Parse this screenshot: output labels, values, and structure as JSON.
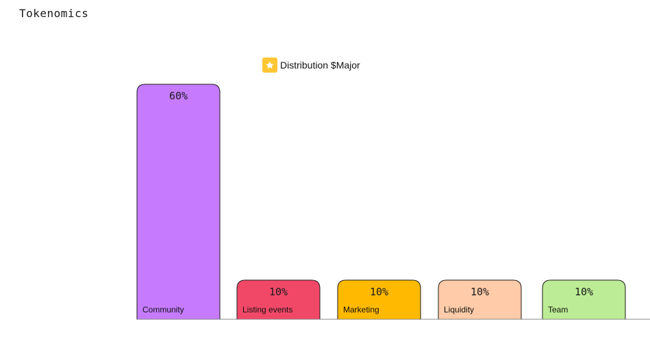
{
  "page": {
    "title": "Tokenomics"
  },
  "legend": {
    "icon": "star-icon",
    "icon_color": "#FFC633"
  },
  "chart_data": {
    "type": "bar",
    "title": "Distribution $Major",
    "categories": [
      "Community",
      "Listing events",
      "Marketing",
      "Liquidity",
      "Team"
    ],
    "values": [
      60,
      10,
      10,
      10,
      10
    ],
    "value_labels": [
      "60%",
      "10%",
      "10%",
      "10%",
      "10%"
    ],
    "colors": [
      "#C67BFF",
      "#F24868",
      "#FFBA00",
      "#FFCBA8",
      "#BCEC95"
    ],
    "ylim": [
      0,
      60
    ],
    "grid": false,
    "xlabel": "",
    "ylabel": ""
  }
}
